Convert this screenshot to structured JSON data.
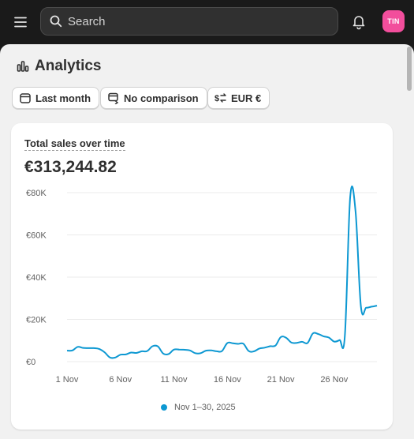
{
  "topbar": {
    "search_placeholder": "Search",
    "avatar_initials": "TIN",
    "avatar_color": "#f24e9c",
    "icons": [
      "menu-icon",
      "search-icon",
      "bell-icon"
    ]
  },
  "page": {
    "title": "Analytics",
    "title_icon": "bar-chart-icon"
  },
  "filters": [
    {
      "label": "Last month",
      "icon": "calendar-icon"
    },
    {
      "label": "No comparison",
      "icon": "compare-icon"
    },
    {
      "label": "EUR €",
      "icon": "currency-icon"
    }
  ],
  "card": {
    "title": "Total sales over time",
    "value": "€313,244.82",
    "legend_label": "Nov 1–30, 2025"
  },
  "chart_data": {
    "type": "line",
    "title": "Total sales over time",
    "series_color": "#0d98d2",
    "ylim": [
      0,
      80000
    ],
    "yticks": [
      0,
      20000,
      40000,
      60000,
      80000
    ],
    "ytick_labels": [
      "€0",
      "€20K",
      "€40K",
      "€60K",
      "€80K"
    ],
    "xticks": [
      1,
      6,
      11,
      16,
      21,
      26
    ],
    "xtick_labels": [
      "1 Nov",
      "6 Nov",
      "11 Nov",
      "16 Nov",
      "21 Nov",
      "26 Nov"
    ],
    "grid": true,
    "legend": "bottom-center",
    "series": [
      {
        "name": "Nov 1–30, 2025",
        "x": [
          1,
          1.5,
          2,
          2.5,
          3,
          3.5,
          4,
          4.5,
          5,
          5.5,
          6,
          6.5,
          7,
          7.5,
          8,
          8.5,
          9,
          9.5,
          10,
          10.5,
          11,
          11.5,
          12,
          12.5,
          13,
          13.5,
          14,
          14.5,
          15,
          15.5,
          16,
          16.5,
          17,
          17.5,
          18,
          18.5,
          19,
          19.5,
          20,
          20.5,
          21,
          21.5,
          22,
          22.5,
          23,
          23.5,
          24,
          24.5,
          25,
          25.5,
          26,
          26.5,
          27,
          27.5,
          28,
          28.5,
          29,
          29.5,
          30
        ],
        "y": [
          5200,
          5300,
          7000,
          6500,
          6400,
          6400,
          6000,
          4500,
          2000,
          1900,
          3300,
          3400,
          4300,
          4100,
          4900,
          5000,
          7300,
          7200,
          3800,
          3600,
          5700,
          5700,
          5600,
          5300,
          4000,
          4000,
          5200,
          5300,
          4900,
          5000,
          8800,
          8700,
          8400,
          8500,
          5000,
          4900,
          6200,
          6600,
          7300,
          7600,
          11600,
          11300,
          9000,
          8900,
          9400,
          8800,
          13300,
          13100,
          12000,
          11400,
          9500,
          10200,
          12200,
          78000,
          71000,
          26000,
          25500,
          26000,
          26500
        ]
      }
    ]
  }
}
